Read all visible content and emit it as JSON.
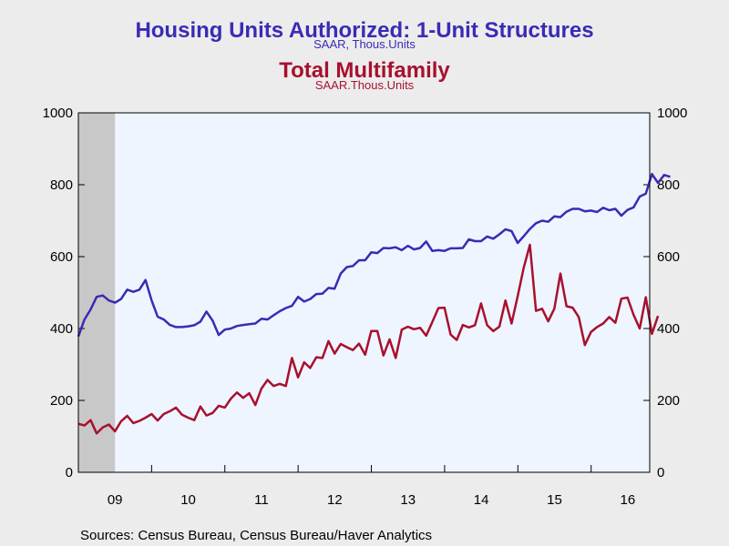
{
  "chart_data": {
    "type": "line",
    "titles": [
      {
        "text": "Housing Units Authorized: 1-Unit Structures",
        "subtitle": "SAAR, Thous.Units",
        "color": "#3a2bb5"
      },
      {
        "text": "Total Multifamily",
        "subtitle": "SAAR.Thous.Units",
        "color": "#a8102e"
      }
    ],
    "source": "Sources:  Census Bureau, Census Bureau/Haver Analytics",
    "x_tick_labels": [
      "09",
      "10",
      "11",
      "12",
      "13",
      "14",
      "15",
      "16"
    ],
    "x_range": [
      2009.0,
      2016.8
    ],
    "y_left": {
      "range": [
        0,
        1000
      ],
      "ticks": [
        "0",
        "200",
        "400",
        "600",
        "800",
        "1000"
      ]
    },
    "y_right": {
      "range": [
        0,
        1000
      ],
      "ticks": [
        "0",
        "200",
        "400",
        "600",
        "800",
        "1000"
      ]
    },
    "recession_shading": {
      "start": 2009.0,
      "end": 2009.5,
      "color": "#c8c8c8"
    },
    "plot_background": "#eef5ff",
    "series": [
      {
        "name": "Housing Units Authorized: 1-Unit Structures",
        "color": "#3a2bb5",
        "x_start": 2009.0,
        "step": 0.0833,
        "values": [
          378,
          425,
          453,
          488,
          492,
          478,
          472,
          482,
          508,
          502,
          508,
          535,
          478,
          433,
          425,
          410,
          404,
          404,
          406,
          409,
          419,
          447,
          422,
          382,
          397,
          400,
          407,
          410,
          412,
          414,
          427,
          425,
          437,
          448,
          457,
          463,
          488,
          475,
          482,
          496,
          497,
          513,
          511,
          553,
          571,
          574,
          590,
          590,
          612,
          610,
          624,
          623,
          626,
          618,
          630,
          620,
          624,
          642,
          616,
          618,
          616,
          623,
          623,
          624,
          648,
          643,
          643,
          656,
          650,
          662,
          676,
          671,
          638,
          657,
          677,
          693,
          700,
          697,
          712,
          710,
          725,
          733,
          733,
          726,
          728,
          724,
          736,
          729,
          733,
          714,
          730,
          737,
          767,
          775,
          830,
          805,
          827,
          822
        ]
      },
      {
        "name": "Total Multifamily",
        "color": "#a8102e",
        "x_start": 2009.0,
        "step": 0.0833,
        "values": [
          135,
          130,
          145,
          108,
          125,
          133,
          114,
          142,
          157,
          137,
          143,
          152,
          162,
          144,
          162,
          170,
          180,
          160,
          152,
          145,
          183,
          158,
          165,
          185,
          180,
          205,
          222,
          207,
          220,
          187,
          233,
          257,
          240,
          246,
          240,
          318,
          264,
          306,
          290,
          320,
          318,
          365,
          330,
          357,
          348,
          340,
          358,
          327,
          393,
          393,
          325,
          370,
          318,
          397,
          405,
          398,
          402,
          380,
          418,
          457,
          458,
          383,
          368,
          410,
          403,
          409,
          470,
          409,
          393,
          405,
          478,
          414,
          490,
          570,
          633,
          449,
          455,
          420,
          455,
          553,
          462,
          458,
          432,
          354,
          390,
          404,
          414,
          432,
          416,
          483,
          486,
          438,
          400,
          487,
          385,
          435
        ]
      }
    ]
  }
}
